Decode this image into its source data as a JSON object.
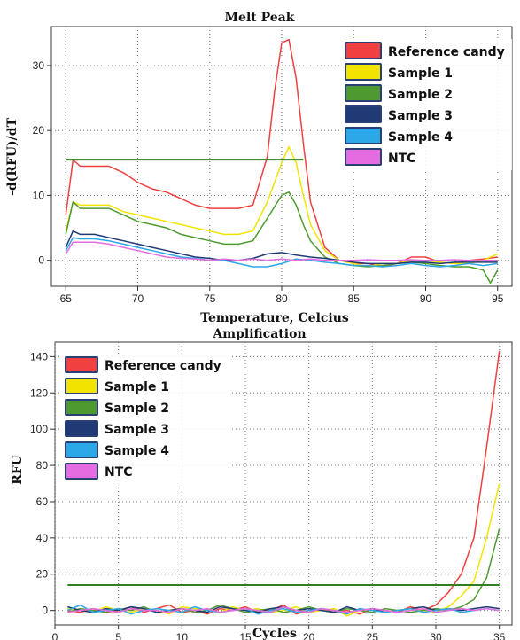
{
  "chart_data": [
    {
      "type": "line",
      "title": "Melt Peak",
      "xlabel": "Temperature, Celcius",
      "ylabel": "-d(RFU)/dT",
      "xlim": [
        64,
        96
      ],
      "ylim": [
        -4,
        36
      ],
      "xticks": [
        65,
        70,
        75,
        80,
        85,
        90,
        95
      ],
      "yticks": [
        0,
        10,
        20,
        30
      ],
      "grid": true,
      "legend_position": "top-right",
      "threshold": {
        "value": 15.5,
        "x_range": [
          65,
          81.5
        ],
        "color": "#2e7d1e"
      },
      "series": [
        {
          "name": "Reference candy",
          "color": "#f04040",
          "x": [
            65,
            65.5,
            66,
            67,
            68,
            69,
            70,
            71,
            72,
            73,
            74,
            75,
            76,
            77,
            78,
            79,
            79.5,
            80,
            80.5,
            81,
            81.5,
            82,
            83,
            84,
            85,
            86,
            87,
            88,
            89,
            90,
            91,
            92,
            93,
            94,
            95
          ],
          "y": [
            7,
            15.5,
            14.5,
            14.5,
            14.5,
            13.5,
            12,
            11,
            10.5,
            9.5,
            8.5,
            8,
            8,
            8,
            8.5,
            16,
            26,
            33.5,
            34,
            28,
            18,
            9,
            2,
            0,
            -0.5,
            -0.5,
            -1,
            -0.5,
            0.5,
            0.5,
            -0.3,
            -0.5,
            0,
            0.2,
            0.5
          ]
        },
        {
          "name": "Sample 1",
          "color": "#f2e400",
          "x": [
            65,
            65.5,
            66,
            67,
            68,
            69,
            70,
            71,
            72,
            73,
            74,
            75,
            76,
            77,
            78,
            79,
            80,
            80.5,
            81,
            81.5,
            82,
            83,
            84,
            85,
            86,
            87,
            88,
            89,
            90,
            91,
            92,
            93,
            94,
            95
          ],
          "y": [
            4.5,
            9,
            8.5,
            8.5,
            8.5,
            7.5,
            7,
            6.5,
            6,
            5.5,
            5,
            4.5,
            4,
            4,
            4.5,
            9,
            15,
            17.5,
            15,
            10,
            5.5,
            1.5,
            0,
            -0.5,
            -1,
            -0.5,
            -0.5,
            0,
            0,
            -0.3,
            -0.5,
            -0.5,
            0,
            1
          ]
        },
        {
          "name": "Sample 2",
          "color": "#4e9a30",
          "x": [
            65,
            65.5,
            66,
            67,
            68,
            69,
            70,
            71,
            72,
            73,
            74,
            75,
            76,
            77,
            78,
            79,
            80,
            80.5,
            81,
            81.5,
            82,
            83,
            84,
            85,
            86,
            87,
            88,
            89,
            90,
            91,
            92,
            93,
            94,
            94.5,
            95
          ],
          "y": [
            4,
            9,
            8,
            8,
            8,
            7,
            6,
            5.5,
            5,
            4,
            3.5,
            3,
            2.5,
            2.5,
            3,
            6.5,
            10,
            10.5,
            8.5,
            5.5,
            3,
            0.5,
            -0.5,
            -0.8,
            -1,
            -0.8,
            -0.5,
            -0.3,
            -0.5,
            -0.8,
            -1,
            -1,
            -1.5,
            -3.5,
            -1.5
          ]
        },
        {
          "name": "Sample 3",
          "color": "#1f3a75",
          "x": [
            65,
            65.5,
            66,
            67,
            68,
            69,
            70,
            71,
            72,
            73,
            74,
            75,
            76,
            77,
            78,
            79,
            80,
            81,
            82,
            83,
            84,
            85,
            86,
            87,
            88,
            89,
            90,
            91,
            92,
            93,
            94,
            95
          ],
          "y": [
            2,
            4.5,
            4,
            4,
            3.5,
            3,
            2.5,
            2,
            1.5,
            1,
            0.5,
            0.3,
            0,
            0,
            0.3,
            1,
            1.2,
            0.8,
            0.5,
            0.3,
            0,
            -0.3,
            -0.5,
            -0.5,
            -0.5,
            -0.3,
            -0.3,
            -0.5,
            -0.3,
            -0.3,
            -0.3,
            -0.3
          ]
        },
        {
          "name": "Sample 4",
          "color": "#2aa8e8",
          "x": [
            65,
            65.5,
            66,
            67,
            68,
            69,
            70,
            71,
            72,
            73,
            74,
            75,
            76,
            77,
            78,
            79,
            80,
            81,
            82,
            83,
            84,
            85,
            86,
            87,
            88,
            89,
            90,
            91,
            92,
            93,
            94,
            95
          ],
          "y": [
            1.5,
            3.5,
            3.3,
            3.3,
            3,
            2.5,
            2,
            1.5,
            1,
            0.5,
            0.3,
            0,
            0,
            -0.5,
            -1,
            -1,
            -0.5,
            0.2,
            0,
            -0.3,
            -0.5,
            -0.8,
            -0.8,
            -1,
            -0.8,
            -0.5,
            -0.8,
            -1,
            -0.8,
            -0.5,
            -0.8,
            -0.5
          ]
        },
        {
          "name": "NTC",
          "color": "#e46be0",
          "x": [
            65,
            65.5,
            66,
            67,
            68,
            69,
            70,
            71,
            72,
            73,
            74,
            75,
            76,
            77,
            78,
            79,
            80,
            81,
            82,
            83,
            84,
            85,
            86,
            87,
            88,
            89,
            90,
            91,
            92,
            93,
            94,
            95
          ],
          "y": [
            1,
            2.8,
            2.8,
            2.8,
            2.5,
            2,
            1.5,
            1,
            0.5,
            0.3,
            0.2,
            0,
            0.2,
            0,
            0.2,
            0,
            0.2,
            0,
            0.2,
            0,
            0,
            0,
            0.1,
            0,
            0,
            0.1,
            0,
            0,
            0.1,
            0,
            0,
            0
          ]
        }
      ]
    },
    {
      "type": "line",
      "title": "Amplification",
      "xlabel": "Cycles",
      "ylabel": "RFU",
      "xlim": [
        0,
        36
      ],
      "ylim": [
        -8,
        148
      ],
      "xticks": [
        0,
        5,
        10,
        15,
        20,
        25,
        30,
        35
      ],
      "yticks": [
        0,
        20,
        40,
        60,
        80,
        100,
        120,
        140
      ],
      "grid": true,
      "legend_position": "top-left",
      "threshold": {
        "value": 14,
        "x_range": [
          1,
          35
        ],
        "color": "#2e7d1e"
      },
      "series": [
        {
          "name": "Reference candy",
          "color": "#f04040",
          "x": [
            1,
            2,
            3,
            4,
            5,
            6,
            7,
            8,
            9,
            10,
            11,
            12,
            13,
            14,
            15,
            16,
            17,
            18,
            19,
            20,
            21,
            22,
            23,
            24,
            25,
            26,
            27,
            28,
            29,
            30,
            31,
            32,
            33,
            34,
            35
          ],
          "y": [
            0,
            -1,
            1,
            -1,
            0,
            2,
            -1,
            1,
            3,
            -1,
            0,
            -2,
            1,
            0,
            2,
            -1,
            0,
            3,
            -2,
            0,
            1,
            -1,
            0,
            -2,
            1,
            0,
            -1,
            2,
            0,
            3,
            10,
            20,
            40,
            90,
            143
          ]
        },
        {
          "name": "Sample 1",
          "color": "#f2e400",
          "x": [
            1,
            2,
            3,
            4,
            5,
            6,
            7,
            8,
            9,
            10,
            11,
            12,
            13,
            14,
            15,
            16,
            17,
            18,
            19,
            20,
            21,
            22,
            23,
            24,
            25,
            26,
            27,
            28,
            29,
            30,
            31,
            32,
            33,
            34,
            35
          ],
          "y": [
            1,
            0,
            -1,
            2,
            0,
            -1,
            1,
            0,
            -2,
            2,
            1,
            0,
            -1,
            2,
            0,
            1,
            -1,
            0,
            2,
            -1,
            0,
            1,
            -3,
            0,
            1,
            -1,
            0,
            1,
            0,
            -1,
            2,
            8,
            16,
            40,
            70
          ]
        },
        {
          "name": "Sample 2",
          "color": "#4e9a30",
          "x": [
            1,
            2,
            3,
            4,
            5,
            6,
            7,
            8,
            9,
            10,
            11,
            12,
            13,
            14,
            15,
            16,
            17,
            18,
            19,
            20,
            21,
            22,
            23,
            24,
            25,
            26,
            27,
            28,
            29,
            30,
            31,
            32,
            33,
            34,
            35
          ],
          "y": [
            -1,
            1,
            0,
            -1,
            1,
            0,
            2,
            -1,
            0,
            1,
            -1,
            0,
            3,
            1,
            -1,
            0,
            1,
            -1,
            0,
            2,
            0,
            -1,
            1,
            0,
            -1,
            1,
            0,
            -1,
            0,
            1,
            0,
            2,
            6,
            18,
            45
          ]
        },
        {
          "name": "Sample 3",
          "color": "#1f3a75",
          "x": [
            1,
            2,
            3,
            4,
            5,
            6,
            7,
            8,
            9,
            10,
            11,
            12,
            13,
            14,
            15,
            16,
            17,
            18,
            19,
            20,
            21,
            22,
            23,
            24,
            25,
            26,
            27,
            28,
            29,
            30,
            31,
            32,
            33,
            34,
            35
          ],
          "y": [
            2,
            0,
            -1,
            1,
            0,
            2,
            1,
            -1,
            0,
            1,
            0,
            -1,
            2,
            1,
            0,
            -1,
            1,
            2,
            0,
            1,
            0,
            -1,
            2,
            0,
            1,
            -1,
            0,
            1,
            2,
            0,
            1,
            0,
            1,
            2,
            1
          ]
        },
        {
          "name": "Sample 4",
          "color": "#2aa8e8",
          "x": [
            1,
            2,
            3,
            4,
            5,
            6,
            7,
            8,
            9,
            10,
            11,
            12,
            13,
            14,
            15,
            16,
            17,
            18,
            19,
            20,
            21,
            22,
            23,
            24,
            25,
            26,
            27,
            28,
            29,
            30,
            31,
            32,
            33,
            34,
            35
          ],
          "y": [
            0,
            3,
            -1,
            0,
            1,
            -2,
            0,
            1,
            0,
            -1,
            2,
            0,
            -1,
            0,
            1,
            -2,
            0,
            1,
            -1,
            0,
            1,
            0,
            -2,
            1,
            0,
            -1,
            0,
            1,
            -1,
            0,
            1,
            -1,
            0,
            1,
            0
          ]
        },
        {
          "name": "NTC",
          "color": "#e46be0",
          "x": [
            1,
            2,
            3,
            4,
            5,
            6,
            7,
            8,
            9,
            10,
            11,
            12,
            13,
            14,
            15,
            16,
            17,
            18,
            19,
            20,
            21,
            22,
            23,
            24,
            25,
            26,
            27,
            28,
            29,
            30,
            31,
            32,
            33,
            34,
            35
          ],
          "y": [
            -1,
            0,
            1,
            0,
            -1,
            1,
            0,
            0,
            -1,
            1,
            0,
            1,
            -1,
            0,
            1,
            0,
            -1,
            2,
            0,
            -1,
            1,
            0,
            -1,
            0,
            1,
            0,
            -1,
            0,
            1,
            -1,
            0,
            1,
            0,
            1,
            0
          ]
        }
      ]
    }
  ]
}
